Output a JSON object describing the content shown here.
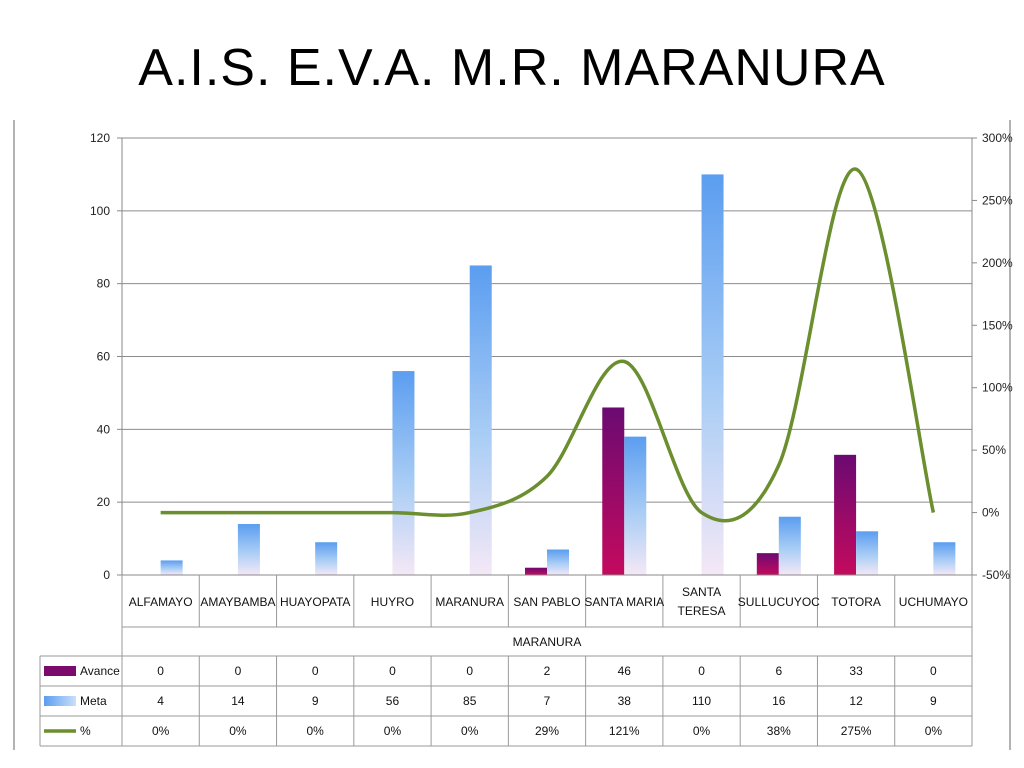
{
  "title": "A.I.S.  E.V.A.  M.R. MARANURA",
  "chart_data": {
    "type": "bar",
    "categories": [
      "ALFAMAYO",
      "AMAYBAMBA",
      "HUAYOPATA",
      "HUYRO",
      "MARANURA",
      "SAN PABLO",
      "SANTA MARIA",
      "SANTA TERESA",
      "SULLUCUYOC",
      "TOTORA",
      "UCHUMAYO"
    ],
    "category_lines": [
      [
        "ALFAMAYO"
      ],
      [
        "AMAYBAMBA"
      ],
      [
        "HUAYOPATA"
      ],
      [
        "HUYRO"
      ],
      [
        "MARANURA"
      ],
      [
        "SAN PABLO"
      ],
      [
        "SANTA MARIA"
      ],
      [
        "SANTA",
        "TERESA"
      ],
      [
        "SULLUCUYOC"
      ],
      [
        "TOTORA"
      ],
      [
        "UCHUMAYO"
      ]
    ],
    "group_label": "MARANURA",
    "series": [
      {
        "name": "Avance",
        "type": "bar",
        "axis": "left",
        "color": "#7a0a6b",
        "values": [
          0,
          0,
          0,
          0,
          0,
          2,
          46,
          0,
          6,
          33,
          0
        ]
      },
      {
        "name": "Meta",
        "type": "bar",
        "axis": "left",
        "color": "#5ea0f0",
        "values": [
          4,
          14,
          9,
          56,
          85,
          7,
          38,
          110,
          16,
          12,
          9
        ]
      },
      {
        "name": "%",
        "type": "line",
        "axis": "right",
        "color": "#6b8e2e",
        "values": [
          0,
          0,
          0,
          0,
          0,
          29,
          121,
          0,
          38,
          275,
          0
        ]
      }
    ],
    "table_values": {
      "Avance": [
        "0",
        "0",
        "0",
        "0",
        "0",
        "2",
        "46",
        "0",
        "6",
        "33",
        "0"
      ],
      "Meta": [
        "4",
        "14",
        "9",
        "56",
        "85",
        "7",
        "38",
        "110",
        "16",
        "12",
        "9"
      ],
      "%": [
        "0%",
        "0%",
        "0%",
        "0%",
        "0%",
        "29%",
        "121%",
        "0%",
        "38%",
        "275%",
        "0%"
      ]
    },
    "ylim": [
      0,
      120
    ],
    "y_ticks": [
      0,
      20,
      40,
      60,
      80,
      100,
      120
    ],
    "y2lim": [
      -50,
      300
    ],
    "y2_ticks": [
      "-50%",
      "0%",
      "50%",
      "100%",
      "150%",
      "200%",
      "250%",
      "300%"
    ],
    "grid": true,
    "legend": "data-table"
  }
}
